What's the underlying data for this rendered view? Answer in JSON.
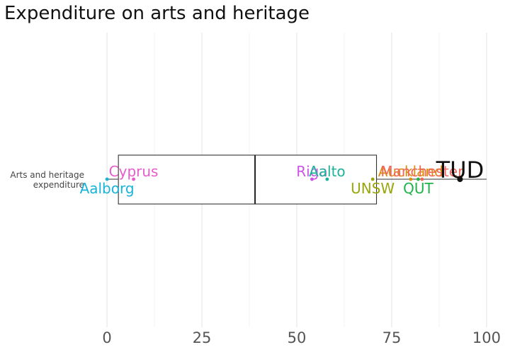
{
  "chart_data": {
    "type": "boxplot",
    "title": "Expenditure on arts and heritage",
    "category_label": [
      "Arts and heritage",
      "expenditure"
    ],
    "xlim": [
      -3,
      103
    ],
    "x_ticks": [
      0,
      25,
      50,
      75,
      100
    ],
    "x_tick_labels": [
      "0",
      "25",
      "50",
      "75",
      "100"
    ],
    "grid": true,
    "box": {
      "whisker_low": 0,
      "q1": 3,
      "median": 39,
      "q3": 71,
      "whisker_high": 100
    },
    "points": [
      {
        "label": "Aalborg",
        "x": 0,
        "color": "#17b3d9",
        "label_side": "below",
        "size": 20
      },
      {
        "label": "Cyprus",
        "x": 7,
        "color": "#e65ccb",
        "label_side": "above",
        "size": 20
      },
      {
        "label": "Riga",
        "x": 54,
        "color": "#cc55e6",
        "label_side": "above",
        "size": 20
      },
      {
        "label": "Aalto",
        "x": 58,
        "color": "#1ab39a",
        "label_side": "above",
        "size": 20
      },
      {
        "label": "UNSW",
        "x": 70,
        "color": "#99a60d",
        "label_side": "below",
        "size": 20
      },
      {
        "label": "Auckland",
        "x": 80,
        "color": "#d9900a",
        "label_side": "above",
        "size": 20
      },
      {
        "label": "QUT",
        "x": 82,
        "color": "#21b34a",
        "label_side": "below",
        "size": 20
      },
      {
        "label": "Manchester",
        "x": 83,
        "color": "#f2665c",
        "label_side": "above",
        "size": 20
      },
      {
        "label": "TUD",
        "x": 93,
        "color": "#111111",
        "label_side": "above",
        "size": 32
      }
    ]
  }
}
